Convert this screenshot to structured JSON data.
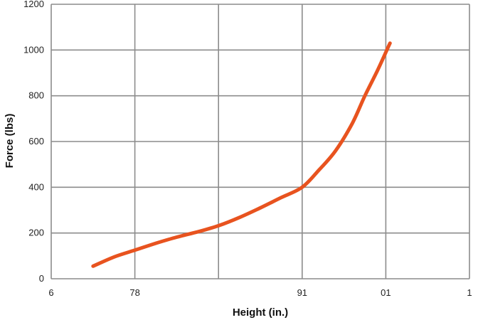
{
  "chart_data": {
    "type": "line",
    "title": "",
    "xlabel": "Height (in.)",
    "ylabel": "Force (lbs)",
    "x_categories": [
      "6",
      "78",
      "",
      "91",
      "01",
      "1"
    ],
    "ylim": [
      0,
      1200
    ],
    "y_ticks": [
      0,
      200,
      400,
      600,
      800,
      1000,
      1200
    ],
    "grid": true,
    "line_color": "#e8531f",
    "grid_color": "#8c8c8c",
    "series": [
      {
        "x": [
          0.5,
          0.75,
          1.0,
          1.25,
          1.5,
          1.75,
          2.0,
          2.25,
          2.5,
          2.75,
          3.0,
          3.2,
          3.4,
          3.6,
          3.75,
          3.9,
          4.0,
          4.05
        ],
        "y": [
          55,
          95,
          125,
          155,
          182,
          205,
          232,
          268,
          310,
          355,
          400,
          475,
          560,
          680,
          800,
          910,
          990,
          1030
        ]
      }
    ]
  }
}
